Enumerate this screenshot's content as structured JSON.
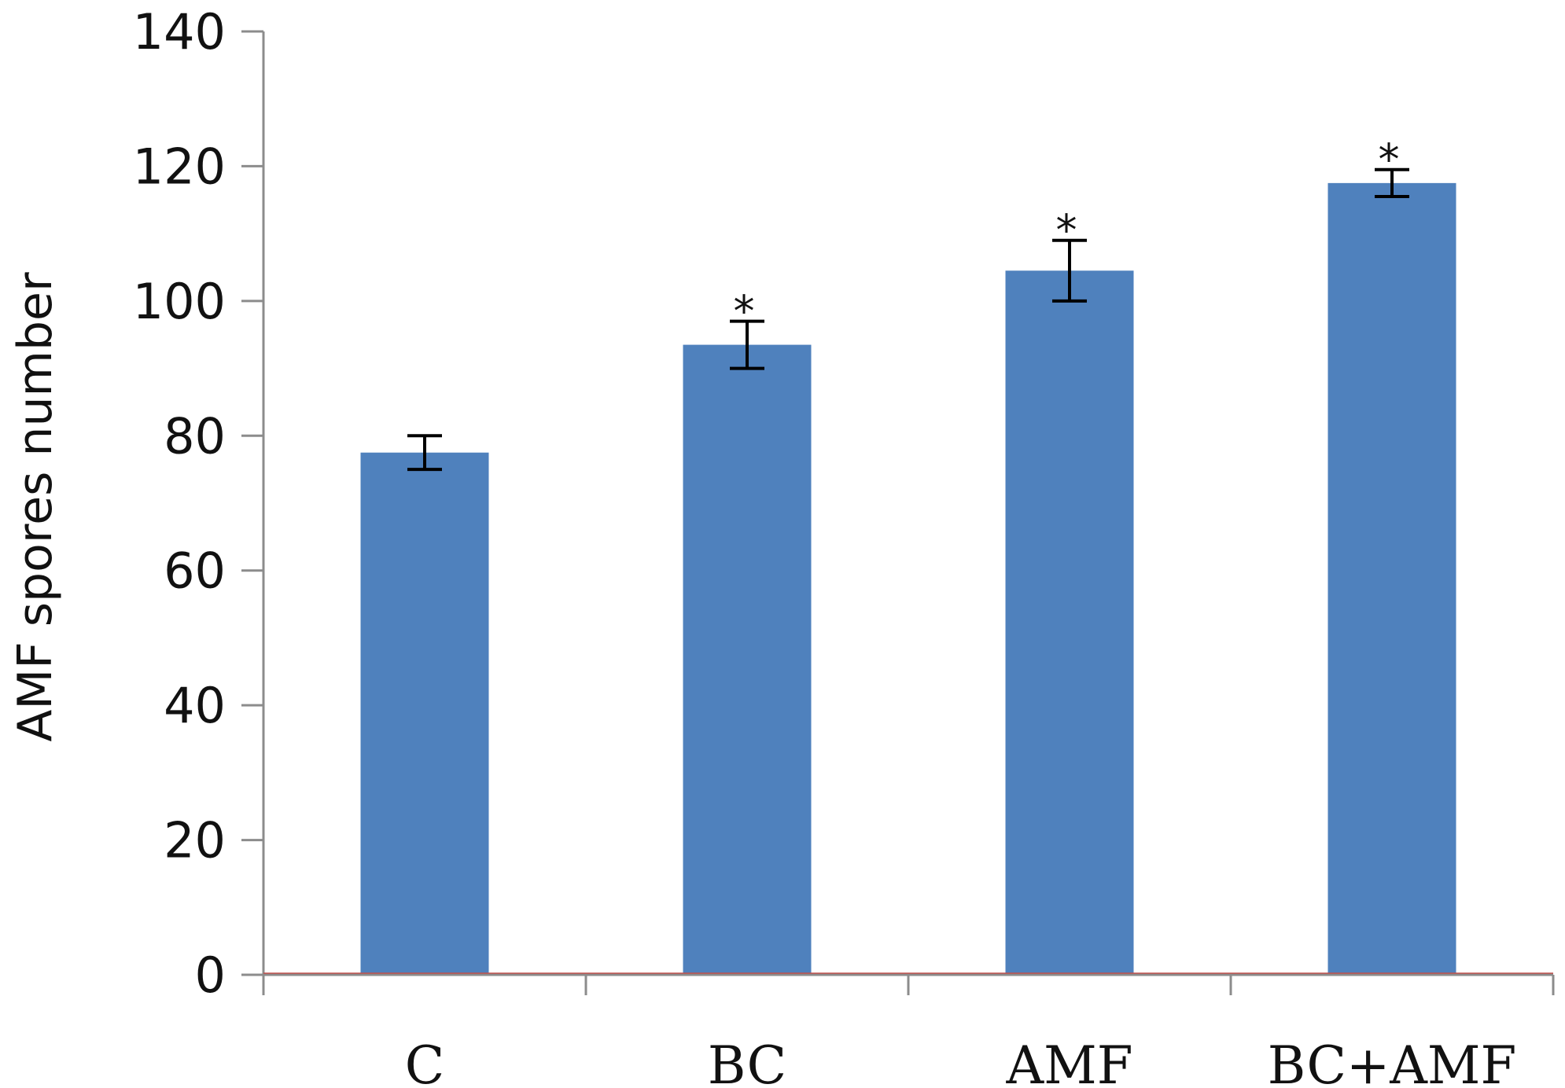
{
  "chart_data": {
    "type": "bar",
    "categories": [
      "C",
      "BC",
      "AMF",
      "BC+AMF"
    ],
    "values": [
      77.5,
      93.5,
      104.5,
      117.5
    ],
    "errors": [
      2.5,
      3.5,
      4.5,
      2.0
    ],
    "significance": [
      "",
      "*",
      "*",
      "*"
    ],
    "title": "",
    "xlabel": "",
    "ylabel": "AMF  spores number",
    "ylim": [
      0,
      140
    ],
    "yticks": [
      0,
      20,
      40,
      60,
      80,
      100,
      120,
      140
    ],
    "grid": false,
    "legend": "none",
    "colors": {
      "bar": "#4f81bd",
      "axis": "#8c8c8c",
      "error_bar": "#000000",
      "baseline": "#c0504d"
    }
  }
}
